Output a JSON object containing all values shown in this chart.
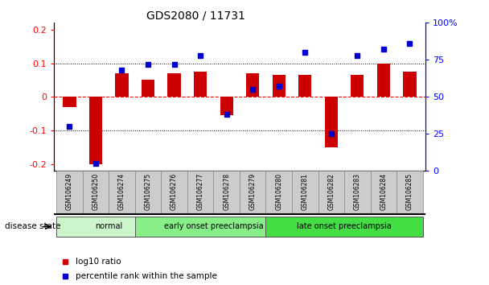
{
  "title": "GDS2080 / 11731",
  "samples": [
    "GSM106249",
    "GSM106250",
    "GSM106274",
    "GSM106275",
    "GSM106276",
    "GSM106277",
    "GSM106278",
    "GSM106279",
    "GSM106280",
    "GSM106281",
    "GSM106282",
    "GSM106283",
    "GSM106284",
    "GSM106285"
  ],
  "log10_ratio": [
    -0.03,
    -0.2,
    0.07,
    0.05,
    0.07,
    0.075,
    -0.055,
    0.07,
    0.065,
    0.065,
    -0.15,
    0.065,
    0.1,
    0.075
  ],
  "percentile_rank": [
    30,
    5,
    68,
    72,
    72,
    78,
    38,
    55,
    57,
    80,
    25,
    78,
    82,
    86
  ],
  "disease_groups": [
    {
      "label": "normal",
      "start": 0,
      "end": 3,
      "color": "#ccf5cc"
    },
    {
      "label": "early onset preeclampsia",
      "start": 3,
      "end": 8,
      "color": "#88ee88"
    },
    {
      "label": "late onset preeclampsia",
      "start": 8,
      "end": 13,
      "color": "#44dd44"
    }
  ],
  "bar_color": "#cc0000",
  "dot_color": "#0000cc",
  "ylim_left": [
    -0.22,
    0.22
  ],
  "ylim_right": [
    0,
    100
  ],
  "yticks_left": [
    -0.2,
    -0.1,
    0,
    0.1,
    0.2
  ],
  "yticks_right": [
    0,
    25,
    50,
    75,
    100
  ],
  "background_color": "#ffffff",
  "title_color": "#000000",
  "title_fontsize": 10
}
